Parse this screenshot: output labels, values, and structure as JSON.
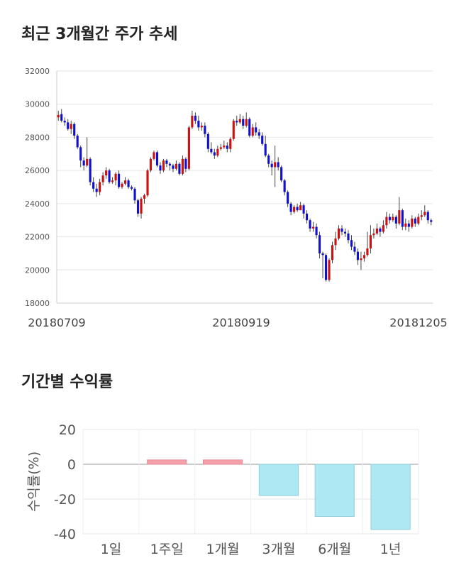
{
  "section1": {
    "title": "최근 3개월간 주가 추세"
  },
  "section2": {
    "title": "기간별 수익률"
  },
  "chart_data": [
    {
      "type": "candlestick",
      "title": "최근 3개월간 주가 추세",
      "ylim": [
        18000,
        32000
      ],
      "yticks": [
        18000,
        20000,
        22000,
        24000,
        26000,
        28000,
        30000,
        32000
      ],
      "xtick_labels": [
        "20180709",
        "20180919",
        "20181205"
      ],
      "grid": true,
      "up_color": "#cc1111",
      "down_color": "#1111cc",
      "candles": [
        [
          29200,
          29350,
          29600,
          29000
        ],
        [
          29400,
          29000,
          29700,
          28900
        ],
        [
          29000,
          28900,
          29200,
          28700
        ],
        [
          28900,
          28500,
          29100,
          28400
        ],
        [
          28500,
          28800,
          29000,
          28200
        ],
        [
          28800,
          28100,
          28900,
          27900
        ],
        [
          28100,
          27400,
          28200,
          27300
        ],
        [
          27400,
          26600,
          27500,
          26200
        ],
        [
          26600,
          26300,
          26800,
          26000
        ],
        [
          26300,
          26700,
          28000,
          26200
        ],
        [
          26700,
          25300,
          26800,
          25100
        ],
        [
          25300,
          24900,
          25600,
          24700
        ],
        [
          24900,
          24700,
          25200,
          24400
        ],
        [
          24700,
          25300,
          25500,
          24500
        ],
        [
          25300,
          25700,
          25900,
          25100
        ],
        [
          25700,
          26000,
          26200,
          25500
        ],
        [
          26000,
          25300,
          26100,
          25200
        ],
        [
          25300,
          25400,
          25600,
          25200
        ],
        [
          25400,
          25800,
          25900,
          25100
        ],
        [
          25800,
          25000,
          26000,
          24900
        ],
        [
          25000,
          25200,
          25300,
          24900
        ],
        [
          25200,
          25400,
          25600,
          25100
        ],
        [
          25400,
          25000,
          25500,
          24900
        ],
        [
          25000,
          24900,
          25100,
          24800
        ],
        [
          24900,
          24200,
          25000,
          24000
        ],
        [
          24200,
          23400,
          24300,
          23200
        ],
        [
          23400,
          24300,
          24400,
          23100
        ],
        [
          24300,
          24500,
          24600,
          24000
        ],
        [
          24500,
          26000,
          26100,
          24400
        ],
        [
          26000,
          26700,
          26800,
          25900
        ],
        [
          26700,
          27100,
          27200,
          26600
        ],
        [
          27100,
          26300,
          27200,
          26200
        ],
        [
          26300,
          26000,
          26500,
          25800
        ],
        [
          26000,
          26600,
          26700,
          25900
        ],
        [
          26600,
          26400,
          26700,
          26200
        ],
        [
          26400,
          26300,
          26500,
          26000
        ],
        [
          26300,
          26100,
          26400,
          25900
        ],
        [
          26100,
          26400,
          26600,
          26000
        ],
        [
          26400,
          25800,
          26500,
          25700
        ],
        [
          25800,
          26700,
          26900,
          25700
        ],
        [
          26700,
          26100,
          26800,
          25900
        ],
        [
          26100,
          28600,
          28700,
          26000
        ],
        [
          28600,
          29300,
          29600,
          28500
        ],
        [
          29300,
          29000,
          29500,
          28800
        ],
        [
          29000,
          28600,
          29300,
          28400
        ],
        [
          28600,
          28700,
          28900,
          28400
        ],
        [
          28700,
          28200,
          28900,
          28000
        ],
        [
          28200,
          27300,
          28300,
          27100
        ],
        [
          27300,
          27100,
          27700,
          27000
        ],
        [
          27100,
          26900,
          27300,
          26700
        ],
        [
          26900,
          27300,
          27500,
          26800
        ],
        [
          27300,
          27400,
          27600,
          27200
        ],
        [
          27400,
          27500,
          27800,
          27300
        ],
        [
          27500,
          27300,
          27700,
          27100
        ],
        [
          27300,
          27900,
          28000,
          27100
        ],
        [
          27900,
          29000,
          29100,
          27800
        ],
        [
          29000,
          28900,
          29300,
          28700
        ],
        [
          28900,
          29100,
          29400,
          28800
        ],
        [
          29100,
          28700,
          29300,
          28500
        ],
        [
          28700,
          29100,
          29500,
          28600
        ],
        [
          29100,
          28100,
          29200,
          28000
        ],
        [
          28100,
          28600,
          28800,
          28000
        ],
        [
          28600,
          28300,
          28900,
          28100
        ],
        [
          28300,
          28100,
          28500,
          27900
        ],
        [
          28100,
          27600,
          28300,
          27500
        ],
        [
          27600,
          26900,
          28100,
          26800
        ],
        [
          26900,
          26400,
          27000,
          26200
        ],
        [
          26400,
          26200,
          26600,
          25700
        ],
        [
          26200,
          26500,
          27500,
          25000
        ],
        [
          26500,
          26200,
          26800,
          26000
        ],
        [
          26200,
          25400,
          26300,
          25300
        ],
        [
          25400,
          24700,
          25500,
          24500
        ],
        [
          24700,
          24000,
          24800,
          23800
        ],
        [
          24000,
          23500,
          24100,
          23300
        ],
        [
          23500,
          23800,
          23900,
          23400
        ],
        [
          23800,
          23600,
          24000,
          23500
        ],
        [
          23600,
          23900,
          24100,
          23600
        ],
        [
          23900,
          23400,
          24000,
          23100
        ],
        [
          23400,
          23000,
          23600,
          22800
        ],
        [
          23000,
          22500,
          23100,
          22300
        ],
        [
          22500,
          22600,
          22900,
          22300
        ],
        [
          22600,
          22100,
          22800,
          21900
        ],
        [
          22100,
          21000,
          22300,
          20700
        ],
        [
          21000,
          20900,
          21100,
          19500
        ],
        [
          20900,
          19400,
          21000,
          19300
        ],
        [
          19400,
          20600,
          20700,
          19300
        ],
        [
          20600,
          21500,
          21700,
          20400
        ],
        [
          21500,
          21900,
          22300,
          21200
        ],
        [
          21900,
          22500,
          22700,
          21800
        ],
        [
          22500,
          22300,
          22700,
          22100
        ],
        [
          22300,
          22200,
          22500,
          22000
        ],
        [
          22200,
          21800,
          22400,
          21600
        ],
        [
          21800,
          21400,
          22100,
          21200
        ],
        [
          21400,
          21100,
          21700,
          20900
        ],
        [
          21100,
          20600,
          21300,
          20300
        ],
        [
          20600,
          20700,
          21100,
          20000
        ],
        [
          20700,
          20900,
          21100,
          20500
        ],
        [
          20900,
          21300,
          22300,
          20800
        ],
        [
          21300,
          22100,
          22700,
          21000
        ],
        [
          22100,
          22200,
          22500,
          21900
        ],
        [
          22200,
          22500,
          22800,
          22100
        ],
        [
          22500,
          22300,
          22600,
          22000
        ],
        [
          22300,
          22700,
          23000,
          22200
        ],
        [
          22700,
          23200,
          23500,
          22500
        ],
        [
          23200,
          23000,
          23400,
          22800
        ],
        [
          23000,
          23200,
          23400,
          22900
        ],
        [
          23200,
          22800,
          23300,
          22500
        ],
        [
          22800,
          23600,
          24400,
          22700
        ],
        [
          23600,
          22600,
          23700,
          22400
        ],
        [
          22600,
          22800,
          23100,
          22400
        ],
        [
          22800,
          22600,
          23000,
          22300
        ],
        [
          22600,
          23100,
          23300,
          22500
        ],
        [
          23100,
          22800,
          23200,
          22600
        ],
        [
          22800,
          23200,
          23400,
          22700
        ],
        [
          23200,
          23300,
          23600,
          23000
        ],
        [
          23300,
          23500,
          23900,
          23200
        ],
        [
          23500,
          23000,
          23600,
          22800
        ],
        [
          23000,
          22900,
          23100,
          22700
        ]
      ]
    },
    {
      "type": "bar",
      "title": "기간별 수익률",
      "ylabel": "수익률(%)",
      "ylim": [
        -40,
        20
      ],
      "yticks": [
        20,
        0,
        -20,
        -40
      ],
      "categories": [
        "1일",
        "1주일",
        "1개월",
        "3개월",
        "6개월",
        "1년"
      ],
      "values": [
        0,
        2.5,
        2.5,
        -18,
        -30,
        -37.5
      ],
      "positive_color": "#f5a0a8",
      "negative_color": "#aee8f2"
    }
  ]
}
